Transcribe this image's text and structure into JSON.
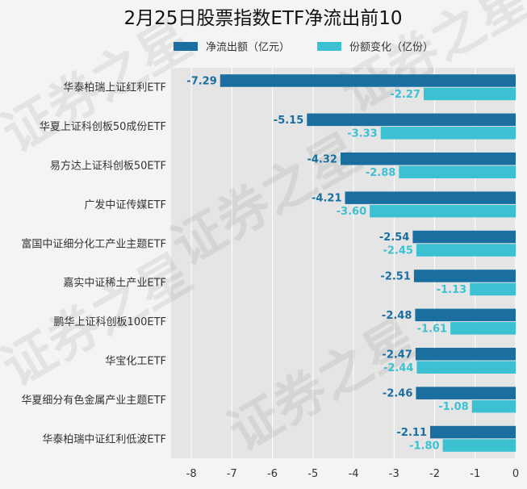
{
  "chart_data": {
    "type": "bar",
    "orientation": "horizontal",
    "title": "2月25日股票指数ETF净流出前10",
    "xlabel": "",
    "ylabel": "",
    "xlim": [
      -8.5,
      0
    ],
    "x_ticks": [
      -8,
      -7,
      -6,
      -5,
      -4,
      -3,
      -2,
      -1,
      0
    ],
    "grid": true,
    "legend_position": "top",
    "categories": [
      "华泰柏瑞上证红利ETF",
      "华夏上证科创板50成份ETF",
      "易方达上证科创板50ETF",
      "广发中证传媒ETF",
      "富国中证细分化工产业主题ETF",
      "嘉实中证稀土产业ETF",
      "鹏华上证科创板100ETF",
      "华宝化工ETF",
      "华夏细分有色金属产业主题ETF",
      "华泰柏瑞中证红利低波ETF"
    ],
    "series": [
      {
        "name": "净流出额（亿元）",
        "color": "#1a6fa0",
        "values": [
          -7.29,
          -5.15,
          -4.32,
          -4.21,
          -2.54,
          -2.51,
          -2.48,
          -2.47,
          -2.46,
          -2.11
        ],
        "labels": [
          "-7.29",
          "-5.15",
          "-4.32",
          "-4.21",
          "-2.54",
          "-2.51",
          "-2.48",
          "-2.47",
          "-2.46",
          "-2.11"
        ]
      },
      {
        "name": "份额变化（亿份）",
        "color": "#3cc1d3",
        "values": [
          -2.27,
          -3.33,
          -2.88,
          -3.6,
          -2.45,
          -1.13,
          -1.61,
          -2.44,
          -1.08,
          -1.8
        ],
        "labels": [
          "-2.27",
          "-3.33",
          "-2.88",
          "-3.60",
          "-2.45",
          "-1.13",
          "-1.61",
          "-2.44",
          "-1.08",
          "-1.80"
        ]
      }
    ],
    "watermark": "证券之星",
    "colors": {
      "background": "#f4f4f4",
      "plot_background": "#e5e5e5",
      "grid": "#ffffff",
      "text": "#333333"
    }
  }
}
